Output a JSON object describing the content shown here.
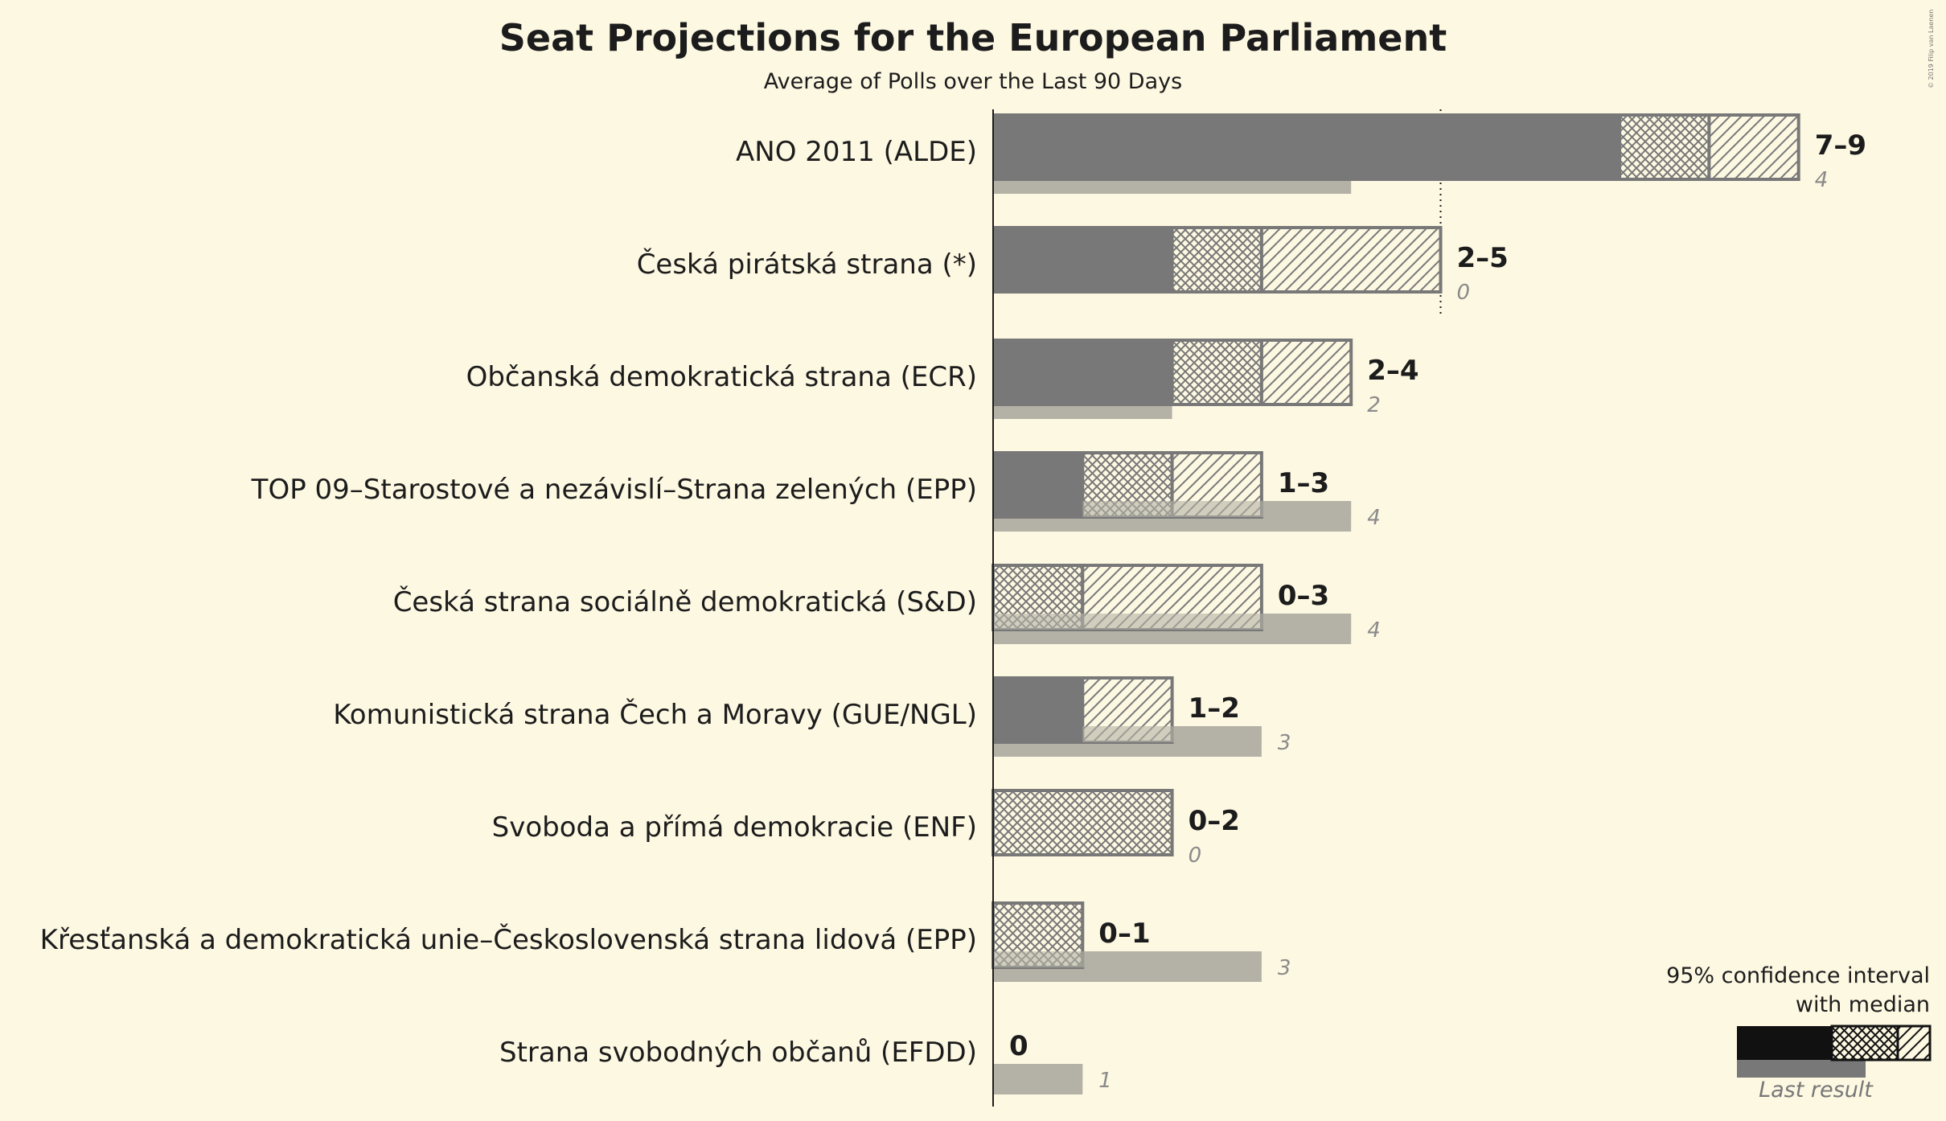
{
  "title": "Seat Projections for the European Parliament",
  "subtitle": "Average of Polls over the Last 90 Days",
  "copyright": "© 2019 Filip van Laenen",
  "colors": {
    "background": "#fdf8e2",
    "median_bar": "#787878",
    "last_result": "#b4b2a6",
    "hatch_stroke": "#787878",
    "text": "#1c1c1c",
    "last_text": "#8a8a8a"
  },
  "legend": {
    "title_line1": "95% confidence interval",
    "title_line2": "with median",
    "last_result_label": "Last result"
  },
  "chart_data": {
    "type": "bar",
    "orientation": "horizontal",
    "majority_line": 5,
    "categories": [
      "ANO 2011 (ALDE)",
      "Česká pirátská strana (*)",
      "Občanská demokratická strana (ECR)",
      "TOP 09–Starostové a nezávislí–Strana zelených (EPP)",
      "Česká strana sociálně demokratická (S&D)",
      "Komunistická strana Čech a Moravy (GUE/NGL)",
      "Svoboda a přímá demokracie (ENF)",
      "Křesťanská a demokratická unie–Československá strana lidová (EPP)",
      "Strana svobodných občanů (EFDD)"
    ],
    "series": [
      {
        "name": "Lower bound",
        "values": [
          7,
          2,
          2,
          1,
          0,
          1,
          0,
          0,
          0
        ]
      },
      {
        "name": "Median",
        "values": [
          8,
          3,
          3,
          2,
          1,
          1,
          2,
          1,
          0
        ]
      },
      {
        "name": "Upper bound",
        "values": [
          9,
          5,
          4,
          3,
          3,
          2,
          2,
          1,
          0
        ]
      },
      {
        "name": "Last result",
        "values": [
          4,
          0,
          2,
          4,
          4,
          3,
          0,
          3,
          1
        ]
      }
    ],
    "range_labels": [
      "7–9",
      "2–5",
      "2–4",
      "1–3",
      "0–3",
      "1–2",
      "0–2",
      "0–1",
      "0"
    ],
    "last_labels": [
      "4",
      "0",
      "2",
      "4",
      "4",
      "3",
      "0",
      "3",
      "1"
    ]
  }
}
